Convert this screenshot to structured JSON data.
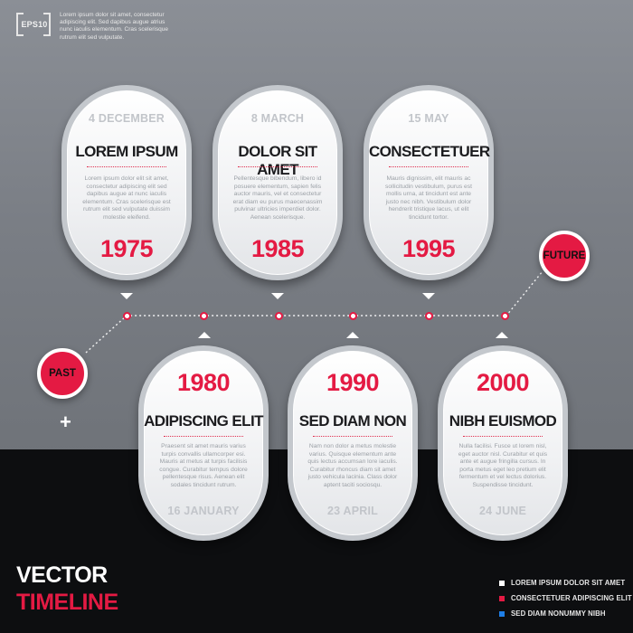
{
  "header": {
    "badge": "EPS10",
    "text": "Lorem ipsum dolor sit amet, consectetur adipiscing elit. Sed dapibus augue atrius nunc iaculis elementum. Cras scelerisque rutrum elit sed vulputate."
  },
  "badges": {
    "past": "PAST",
    "future": "FUTURE",
    "plus": "+"
  },
  "cards_top": [
    {
      "date": "4 DECEMBER",
      "title": "LOREM IPSUM",
      "year": "1975",
      "body": "Lorem ipsum dolor elit sit amet, consectetur adipiscing elit sed dapibus augue at nunc iaculis elementum. Cras scelerisque est rutrum elit sed vulputate duissim molestie eleifend."
    },
    {
      "date": "8 MARCH",
      "title": "DOLOR SIT AMET",
      "year": "1985",
      "body": "Pellentesque bibendum, libero id posuere elementum, sapien felis auctor mauris, vel et consectetur erat diam eu purus maecenassim pulvinar ultricies imperdiet dolor. Aenean scelerisque."
    },
    {
      "date": "15 MAY",
      "title": "CONSECTETUER",
      "year": "1995",
      "body": "Mauris dignissim, elit mauris ac sollicitudin vestibulum, purus est mollis urna, at tincidunt est ante justo nec nibh. Vestibulum dolor hendrerit tristique lacus, ut elit tincidunt tortor."
    }
  ],
  "cards_bottom": [
    {
      "year": "1980",
      "title": "ADIPISCING ELIT",
      "date": "16 JANUARY",
      "body": "Praesent sit amet mauris varius turpis convallis ullamcorper esi. Mauris at metus at turpis facilisis congue. Curabitur tempus dolore pellentesque risus. Aenean elit sodales tincidunt rutrum."
    },
    {
      "year": "1990",
      "title": "SED DIAM NON",
      "date": "23 APRIL",
      "body": "Nam non dolor a metus molestie varius. Quisque elementum ante quis lectus accumsan lore iaculis. Curabitur rhoncus diam sit amet justo vehicula lacinia. Class dolor aptent taciti sociosqu."
    },
    {
      "year": "2000",
      "title": "NIBH EUISMOD",
      "date": "24 JUNE",
      "body": "Nulla facilisi. Fusce ut lorem nisl, eget auctor nisl. Curabitur et quis ante et augue fringilla cursus. In porta metus eget leo pretium elit fermentum et vel lectus dolorius. Suspendisse tincidunt."
    }
  ],
  "footer": {
    "title": "VECTOR",
    "subtitle": "TIMELINE",
    "legend": [
      {
        "label": "LOREM IPSUM DOLOR SIT AMET",
        "color": "#ffffff"
      },
      {
        "label": "CONSECTETUER ADIPISCING ELIT",
        "color": "#e41a43"
      },
      {
        "label": "SED DIAM NONUMMY NIBH",
        "color": "#1e7ee6"
      }
    ]
  }
}
